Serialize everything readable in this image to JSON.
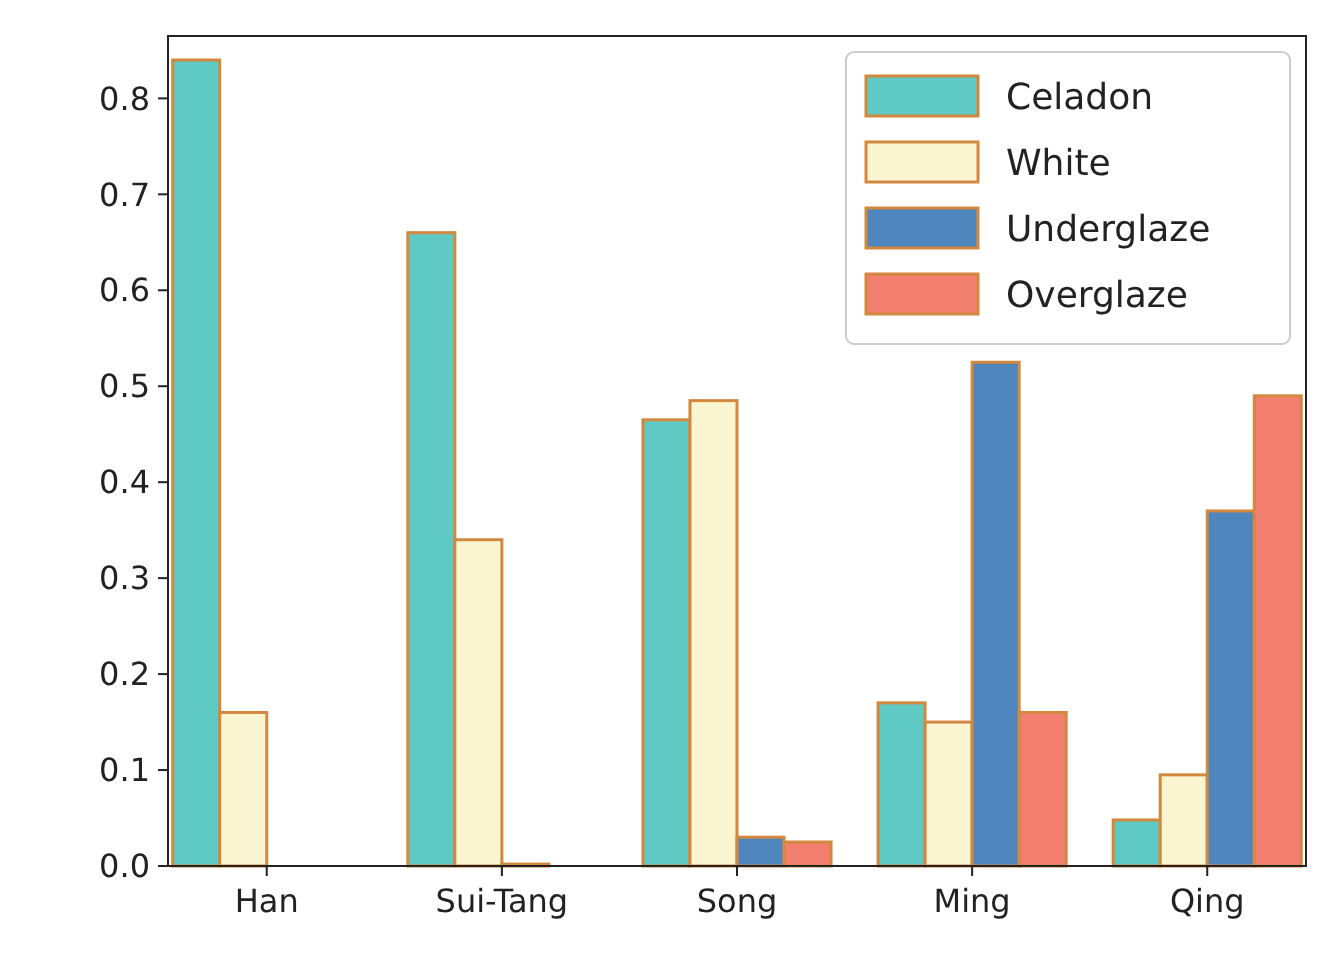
{
  "chart_data": {
    "type": "bar",
    "categories": [
      "Han",
      "Sui-Tang",
      "Song",
      "Ming",
      "Qing"
    ],
    "series": [
      {
        "name": "Celadon",
        "color": "#5fc9c3",
        "values": [
          0.84,
          0.66,
          0.465,
          0.17,
          0.048
        ]
      },
      {
        "name": "White",
        "color": "#fbf6d2",
        "values": [
          0.16,
          0.34,
          0.485,
          0.15,
          0.095
        ]
      },
      {
        "name": "Underglaze",
        "color": "#4f86bd",
        "values": [
          0,
          0.002,
          0.03,
          0.525,
          0.37
        ]
      },
      {
        "name": "Overglaze",
        "color": "#f27f6f",
        "values": [
          0,
          0,
          0.025,
          0.16,
          0.49
        ]
      }
    ],
    "ylim": [
      0,
      0.865
    ],
    "yticks": [
      {
        "value": 0,
        "label": "0.0"
      },
      0.1,
      0.2,
      0.3,
      0.4,
      0.5,
      0.6,
      0.7,
      0.8
    ],
    "grid": false,
    "legend": "top right"
  }
}
